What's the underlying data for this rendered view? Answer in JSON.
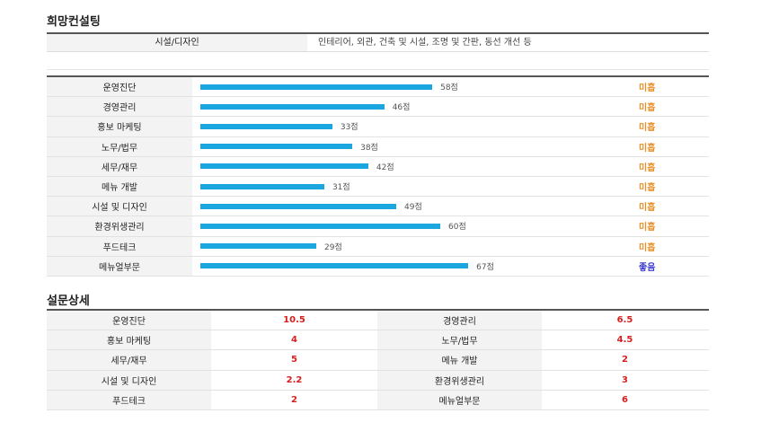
{
  "section1_title": "희망컨설팅",
  "consulting": {
    "label": "시설/디자인",
    "value": "인테리어, 외관, 건축 및 시설, 조명 및 간판, 동선 개선 등"
  },
  "scores": [
    {
      "label": "운영진단",
      "score": 58,
      "points": "58점",
      "grade": "미흡"
    },
    {
      "label": "경영관리",
      "score": 46,
      "points": "46점",
      "grade": "미흡"
    },
    {
      "label": "홍보 마케팅",
      "score": 33,
      "points": "33점",
      "grade": "미흡"
    },
    {
      "label": "노무/법무",
      "score": 38,
      "points": "38점",
      "grade": "미흡"
    },
    {
      "label": "세무/재무",
      "score": 42,
      "points": "42점",
      "grade": "미흡"
    },
    {
      "label": "메뉴 개발",
      "score": 31,
      "points": "31점",
      "grade": "미흡"
    },
    {
      "label": "시설 및 디자인",
      "score": 49,
      "points": "49점",
      "grade": "미흡"
    },
    {
      "label": "환경위생관리",
      "score": 60,
      "points": "60점",
      "grade": "미흡"
    },
    {
      "label": "푸드테크",
      "score": 29,
      "points": "29점",
      "grade": "미흡"
    },
    {
      "label": "메뉴얼부문",
      "score": 67,
      "points": "67점",
      "grade": "좋음"
    }
  ],
  "section2_title": "설문상세",
  "survey": [
    [
      {
        "k": "운영진단",
        "v": "10.5"
      },
      {
        "k": "경영관리",
        "v": "6.5"
      }
    ],
    [
      {
        "k": "홍보 마케팅",
        "v": "4"
      },
      {
        "k": "노무/법무",
        "v": "4.5"
      }
    ],
    [
      {
        "k": "세무/재무",
        "v": "5"
      },
      {
        "k": "메뉴 개발",
        "v": "2"
      }
    ],
    [
      {
        "k": "시설 및 디자인",
        "v": "2.2"
      },
      {
        "k": "환경위생관리",
        "v": "3"
      }
    ],
    [
      {
        "k": "푸드테크",
        "v": "2"
      },
      {
        "k": "메뉴얼부문",
        "v": "6"
      }
    ]
  ],
  "colors": {
    "bar": "#1aa7e0",
    "grade_poor": "#e8912a",
    "grade_good": "#3a3ad0",
    "survey_value": "#d62020"
  }
}
